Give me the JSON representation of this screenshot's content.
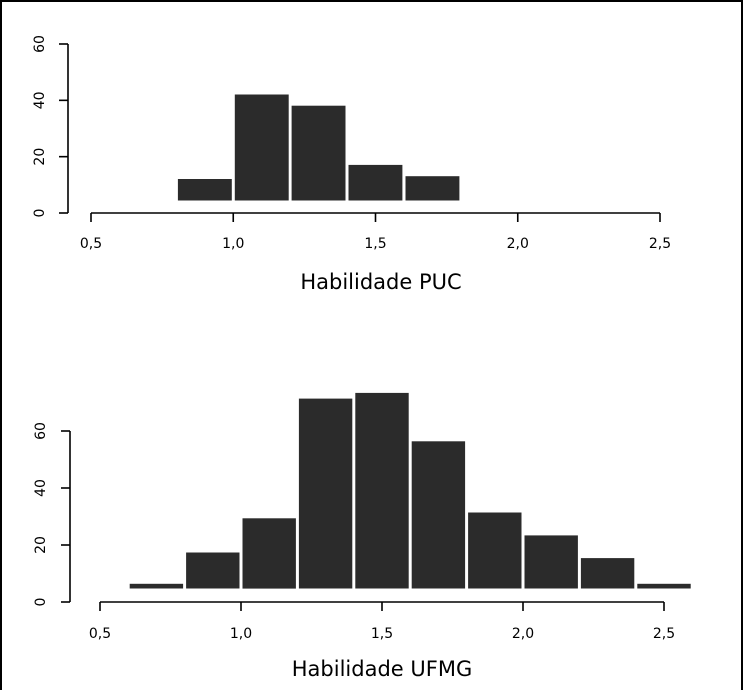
{
  "chart_data": [
    {
      "type": "bar",
      "xlabel": "Habilidade PUC",
      "ylabel": "",
      "ylim": [
        0,
        60
      ],
      "xlim": [
        0.4,
        2.55
      ],
      "xticks": [
        0.5,
        1.0,
        1.5,
        2.0,
        2.5
      ],
      "xtick_labels": [
        "0,5",
        "1,0",
        "1,5",
        "2,0",
        "2,5"
      ],
      "yticks": [
        0,
        20,
        40,
        60
      ],
      "ytick_labels": [
        "0",
        "20",
        "40",
        "60"
      ],
      "bin_width": 0.2,
      "bin_starts": [
        0.8,
        1.0,
        1.2,
        1.4,
        1.6
      ],
      "values": [
        8,
        38,
        34,
        13,
        9
      ],
      "grid": false
    },
    {
      "type": "bar",
      "xlabel": "Habilidade UFMG",
      "ylabel": "",
      "ylim": [
        0,
        70
      ],
      "xlim": [
        0.4,
        2.55
      ],
      "xticks": [
        0.5,
        1.0,
        1.5,
        2.0,
        2.5
      ],
      "xtick_labels": [
        "0,5",
        "1,0",
        "1,5",
        "2,0",
        "2,5"
      ],
      "yticks": [
        0,
        20,
        40,
        60
      ],
      "ytick_labels": [
        "0",
        "20",
        "40",
        "60"
      ],
      "bin_width": 0.2,
      "bin_starts": [
        0.6,
        0.8,
        1.0,
        1.2,
        1.4,
        1.6,
        1.8,
        2.0,
        2.2,
        2.4
      ],
      "values": [
        2,
        13,
        25,
        67,
        69,
        52,
        27,
        19,
        11,
        2
      ],
      "grid": false
    }
  ]
}
